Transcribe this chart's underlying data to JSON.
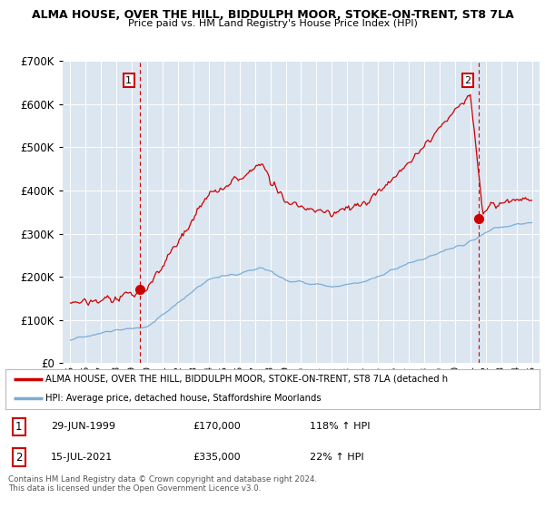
{
  "title1": "ALMA HOUSE, OVER THE HILL, BIDDULPH MOOR, STOKE-ON-TRENT, ST8 7LA",
  "title2": "Price paid vs. HM Land Registry's House Price Index (HPI)",
  "legend_line1": "ALMA HOUSE, OVER THE HILL, BIDDULPH MOOR, STOKE-ON-TRENT, ST8 7LA (detached h",
  "legend_line2": "HPI: Average price, detached house, Staffordshire Moorlands",
  "table_row1": [
    "1",
    "29-JUN-1999",
    "£170,000",
    "118% ↑ HPI"
  ],
  "table_row2": [
    "2",
    "15-JUL-2021",
    "£335,000",
    "22% ↑ HPI"
  ],
  "footer": "Contains HM Land Registry data © Crown copyright and database right 2024.\nThis data is licensed under the Open Government Licence v3.0.",
  "price_color": "#cc0000",
  "hpi_color": "#7aadd4",
  "plot_bg_color": "#dce6f1",
  "grid_color": "#ffffff",
  "annotation_color": "#cc0000",
  "ylim": [
    0,
    700000
  ],
  "marker1_year": 1999.5,
  "marker1_value": 170000,
  "marker2_year": 2021.54,
  "marker2_value": 335000
}
